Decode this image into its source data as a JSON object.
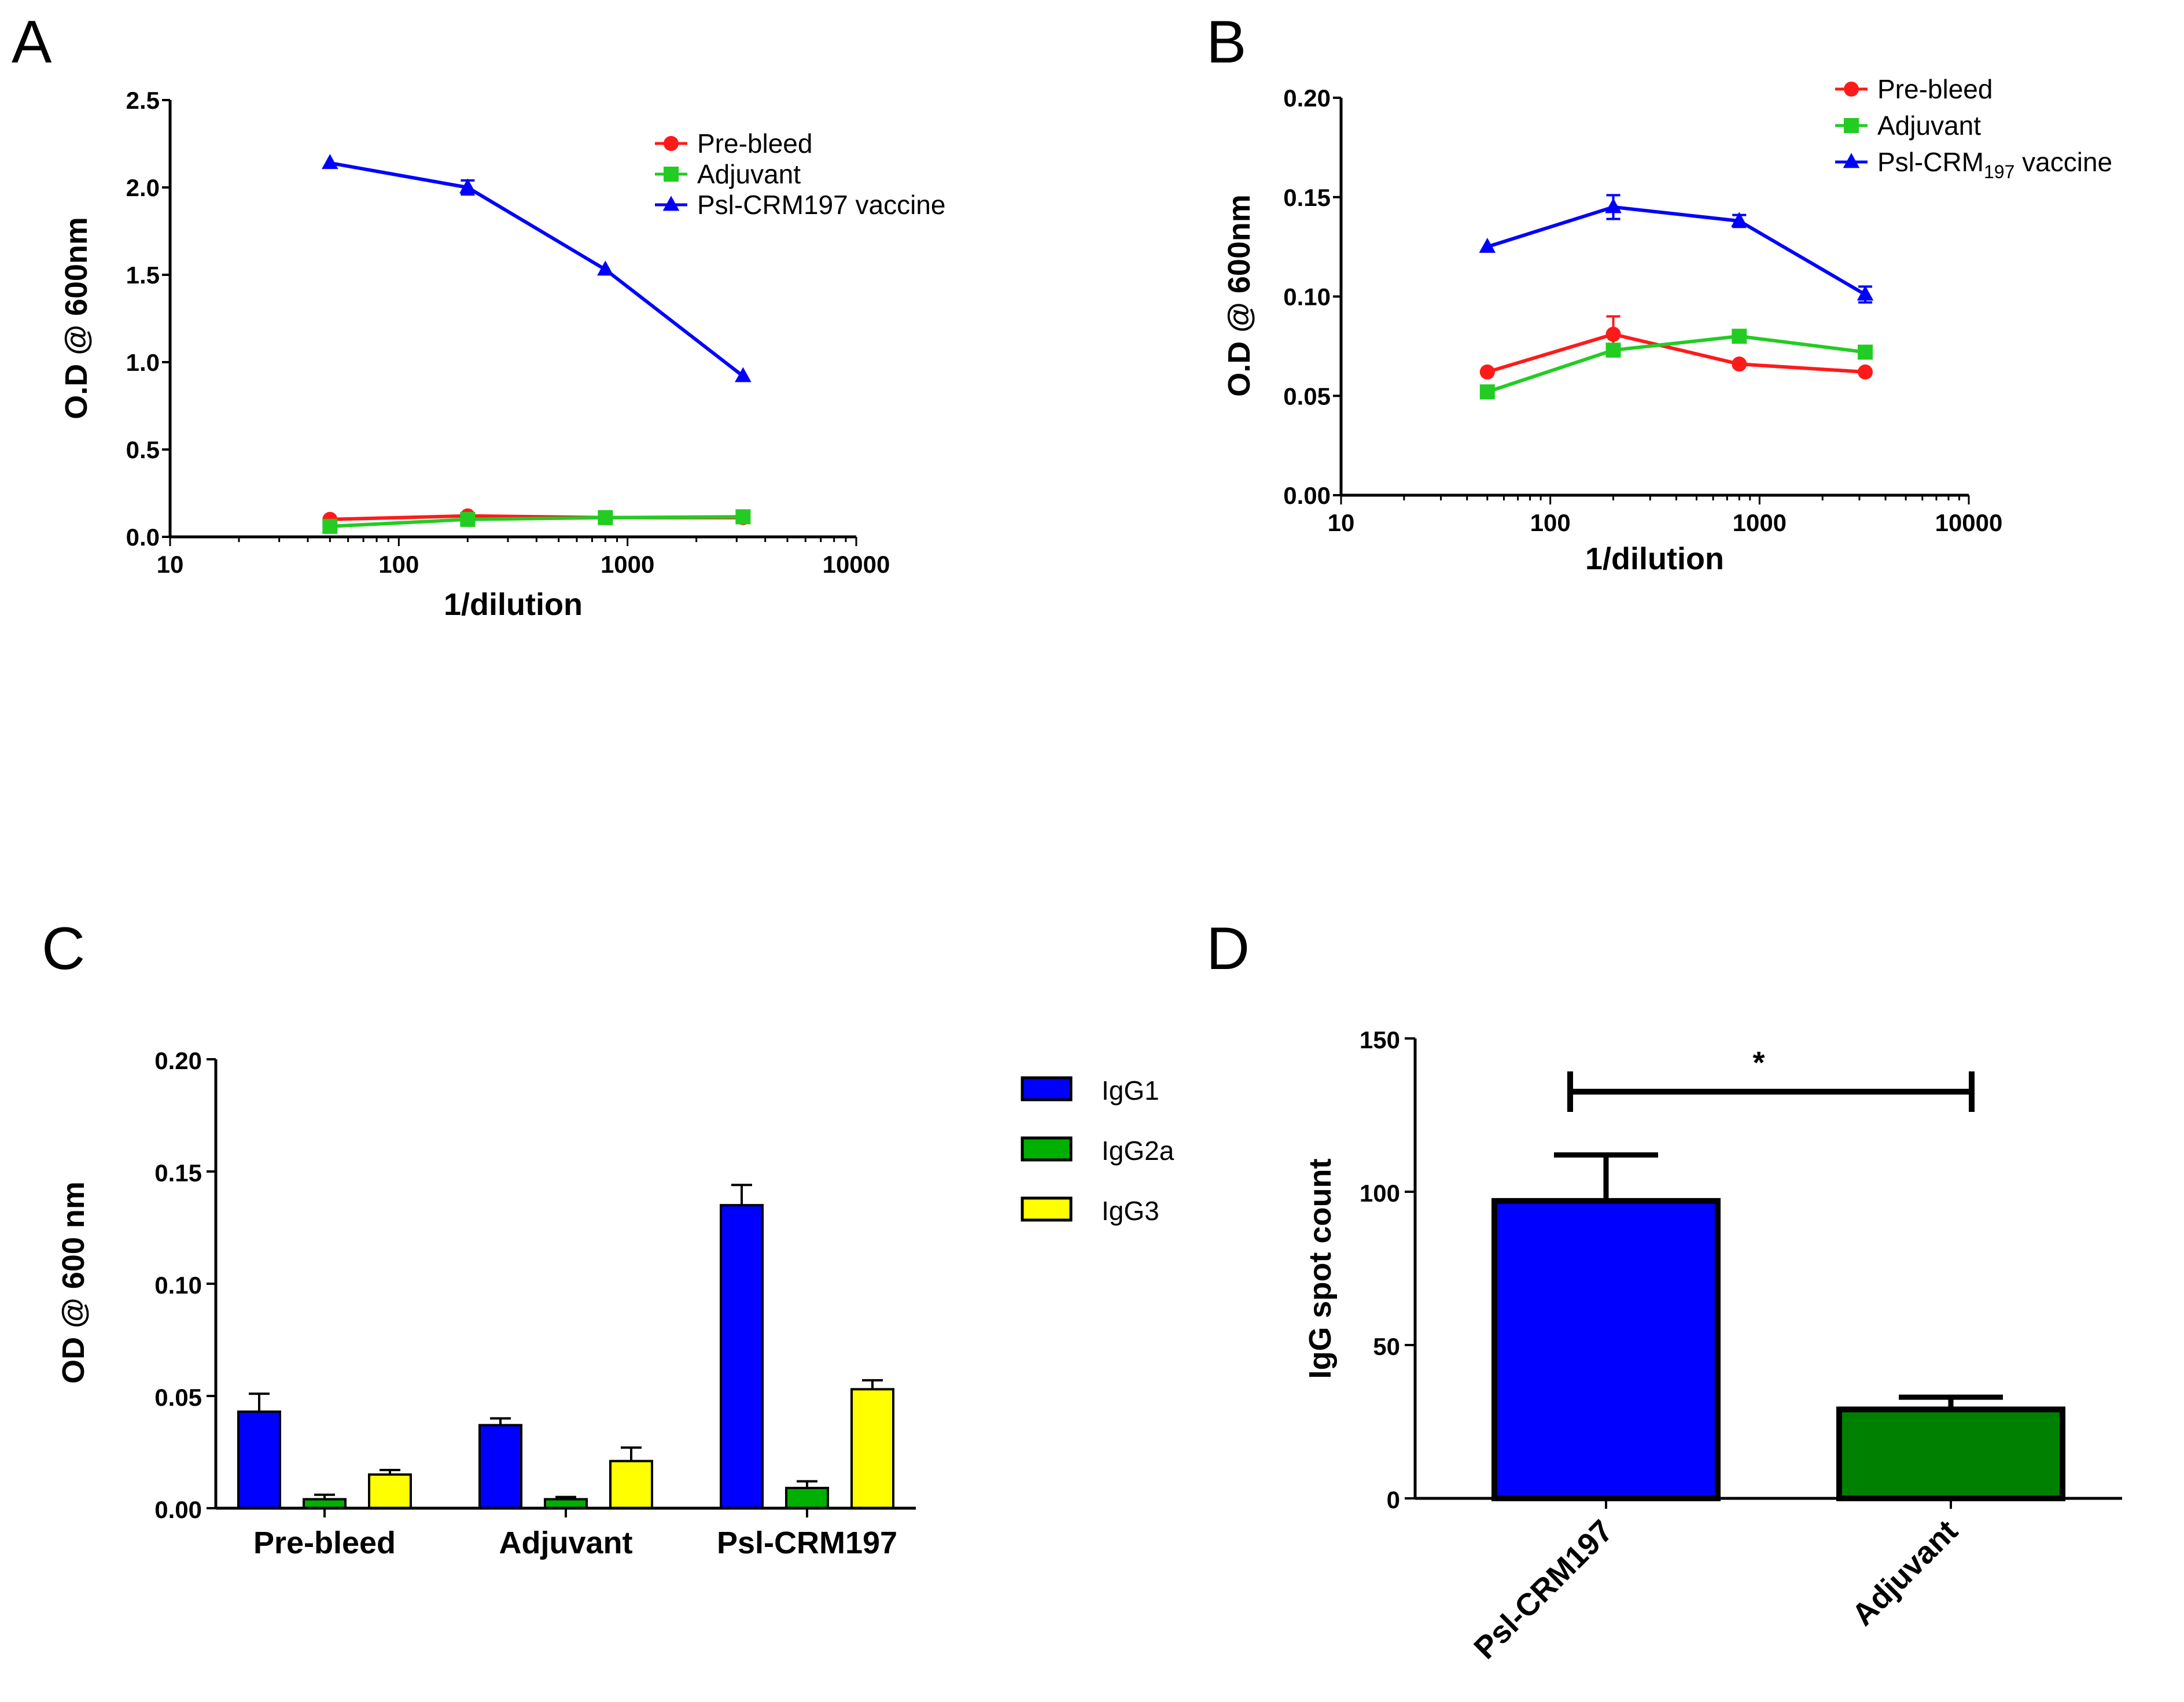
{
  "colors": {
    "red": "#ff1a1a",
    "green_line": "#22cc22",
    "blue": "#0000ff",
    "green_bar": "#00b000",
    "yellow": "#ffff00",
    "green_dark": "#008000"
  },
  "chart_data": [
    {
      "panel": "A",
      "type": "line",
      "xscale": "log",
      "xlabel": "1/dilution",
      "ylabel": "O.D @ 600nm",
      "xlim": [
        10,
        10000
      ],
      "ylim": [
        0,
        2.5
      ],
      "xticks": [
        "10",
        "100",
        "1000",
        "10000"
      ],
      "yticks": [
        "0.0",
        "0.5",
        "1.0",
        "1.5",
        "2.0",
        "2.5"
      ],
      "x": [
        50,
        200,
        800,
        3200
      ],
      "legend_position": "top-right",
      "series": [
        {
          "name": "Pre-bleed",
          "marker": "circle",
          "color": "#ff1a1a",
          "values": [
            0.1,
            0.12,
            0.11,
            0.11
          ],
          "errors": [
            0,
            0,
            0,
            0
          ]
        },
        {
          "name": " Adjuvant",
          "marker": "square",
          "color": "#22cc22",
          "values": [
            0.06,
            0.1,
            0.11,
            0.115
          ],
          "errors": [
            0,
            0,
            0,
            0
          ]
        },
        {
          "name": "Psl-CRM197 vaccine",
          "marker": "triangle",
          "color": "#0000ff",
          "values": [
            2.14,
            2.0,
            1.53,
            0.92
          ],
          "errors": [
            0,
            0.04,
            0,
            0
          ]
        }
      ]
    },
    {
      "panel": "B",
      "type": "line",
      "xscale": "log",
      "xlabel": "1/dilution",
      "ylabel": "O.D @ 600nm",
      "xlim": [
        10,
        10000
      ],
      "ylim": [
        0,
        0.2
      ],
      "xticks": [
        "10",
        "100",
        "1000",
        "10000"
      ],
      "yticks": [
        "0.00",
        "0.05",
        "0.10",
        "0.15",
        "0.20"
      ],
      "x": [
        50,
        200,
        800,
        3200
      ],
      "legend_position": "top-right",
      "series": [
        {
          "name": "Pre-bleed",
          "marker": "circle",
          "color": "#ff1a1a",
          "values": [
            0.062,
            0.081,
            0.066,
            0.062
          ],
          "errors": [
            0,
            0.009,
            0,
            0
          ]
        },
        {
          "name": " Adjuvant",
          "marker": "square",
          "color": "#22cc22",
          "values": [
            0.052,
            0.073,
            0.08,
            0.072
          ],
          "errors": [
            0,
            0,
            0,
            0
          ]
        },
        {
          "name": "Psl-CRM197 vaccine",
          "name_parts": [
            "Psl-CRM",
            "197",
            " vaccine"
          ],
          "marker": "triangle",
          "color": "#0000ff",
          "values": [
            0.125,
            0.145,
            0.138,
            0.101
          ],
          "errors": [
            0,
            0.006,
            0.003,
            0.004
          ]
        }
      ]
    },
    {
      "panel": "C",
      "type": "bar",
      "ylabel": "OD @ 600 nm",
      "ylim": [
        0,
        0.2
      ],
      "yticks": [
        "0.00",
        "0.05",
        "0.10",
        "0.15",
        "0.20"
      ],
      "categories": [
        "Pre-bleed",
        "Adjuvant",
        "Psl-CRM197"
      ],
      "legend_position": "right",
      "series": [
        {
          "name": "IgG1",
          "color": "#0000ff",
          "values": [
            0.043,
            0.037,
            0.135
          ],
          "errors": [
            0.008,
            0.003,
            0.009
          ]
        },
        {
          "name": "IgG2a",
          "color": "#00b000",
          "values": [
            0.004,
            0.004,
            0.009
          ],
          "errors": [
            0.002,
            0.001,
            0.003
          ]
        },
        {
          "name": "IgG3",
          "color": "#ffff00",
          "values": [
            0.015,
            0.021,
            0.053
          ],
          "errors": [
            0.002,
            0.006,
            0.004
          ]
        }
      ]
    },
    {
      "panel": "D",
      "type": "bar",
      "ylabel": "IgG spot count",
      "ylim": [
        0,
        150
      ],
      "yticks": [
        "0",
        "50",
        "100",
        "150"
      ],
      "categories": [
        "Psl-CRM197",
        "Adjuvant"
      ],
      "colors": [
        "#0000ff",
        "#008000"
      ],
      "values": [
        97,
        29
      ],
      "errors": [
        15,
        4
      ],
      "significance": "*"
    }
  ]
}
